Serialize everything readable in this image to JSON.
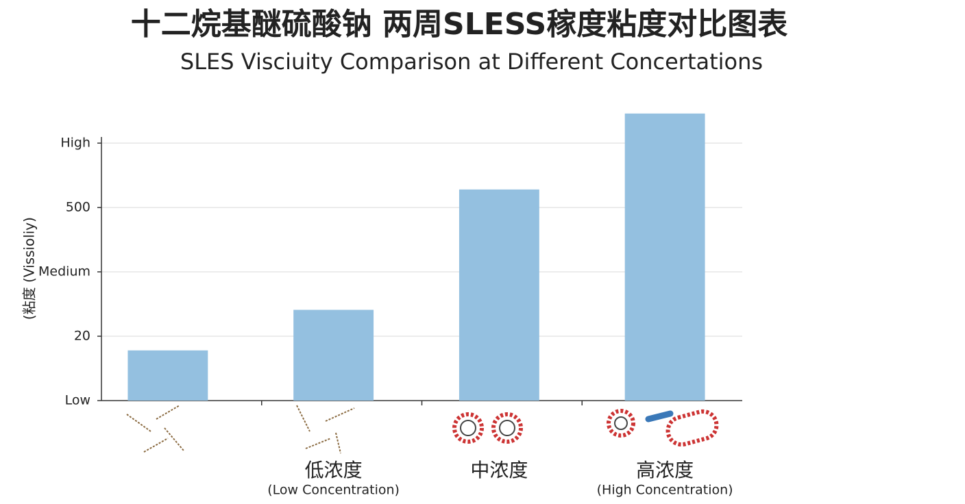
{
  "chart_data": {
    "type": "bar",
    "title": "十二烷基醚硫酸钠 两周SLESS稼度粘度对比图表",
    "subtitle": "SLES Visciuity Comparison at Different Concertations",
    "y_label": "(粘度 (Vissioliy)",
    "categories": [
      null,
      "低浓度",
      "中浓度",
      "高浓度"
    ],
    "category_sublabels": [
      null,
      "(Low Concentration)",
      null,
      "(High Concentration)"
    ],
    "values": [
      0.78,
      1.41,
      3.28,
      4.46
    ],
    "color": "#94c0e0",
    "ylim": [
      0,
      4.5
    ],
    "yticks": [
      {
        "value": 0,
        "label": "Low"
      },
      {
        "value": 1,
        "label": "20"
      },
      {
        "value": 2,
        "label": "Medium"
      },
      {
        "value": 3,
        "label": "500"
      },
      {
        "value": 4,
        "label": "High"
      }
    ],
    "grid": true
  }
}
